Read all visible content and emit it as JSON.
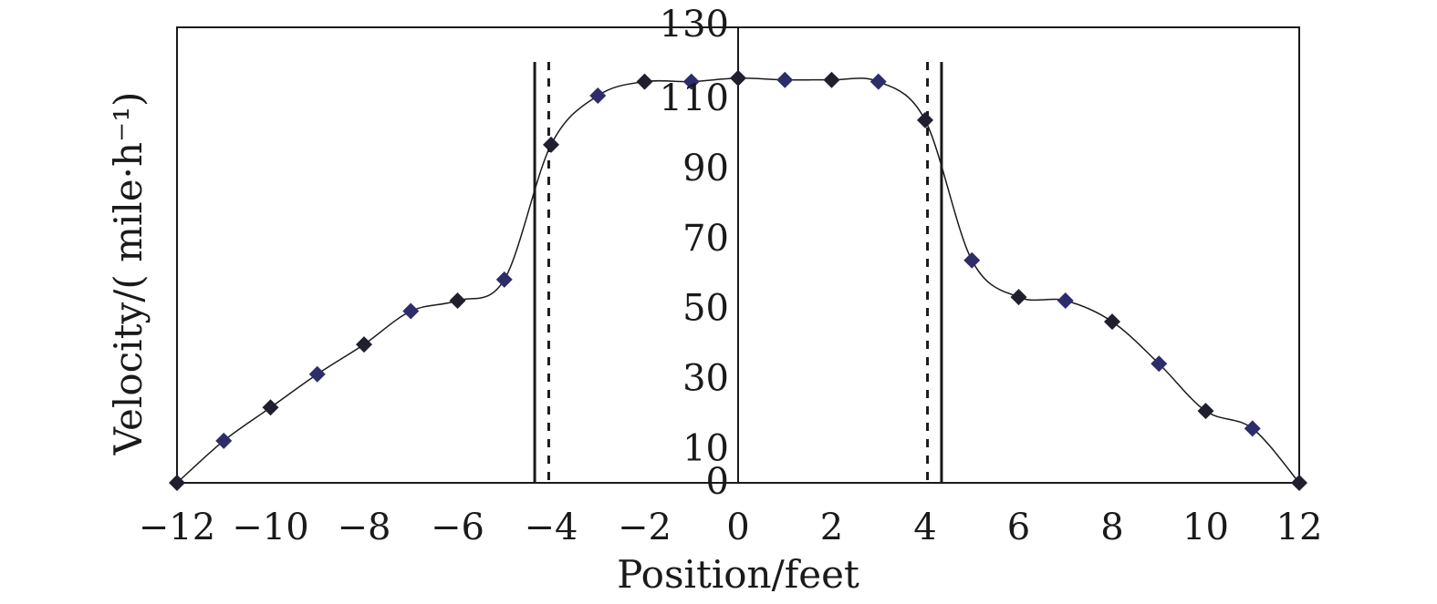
{
  "chart_data": {
    "type": "scatter",
    "title": "",
    "xlabel": "Position/feet",
    "ylabel": "Velocity/( mile·h⁻¹)",
    "xlim": [
      -12,
      12
    ],
    "ylim": [
      0,
      130
    ],
    "x_ticks": [
      -12,
      -10,
      -8,
      -6,
      -4,
      -2,
      0,
      2,
      4,
      6,
      8,
      10,
      12
    ],
    "x_tick_labels": [
      "−12",
      "−10",
      "−8",
      "−6",
      "−4",
      "−2",
      "0",
      "2",
      "4",
      "6",
      "8",
      "10",
      "12"
    ],
    "y_ticks": [
      0,
      10,
      30,
      50,
      70,
      90,
      110,
      130
    ],
    "y_tick_labels": [
      "0",
      "10",
      "30",
      "50",
      "70",
      "90",
      "110",
      "130"
    ],
    "grid": false,
    "legend": "none",
    "series": [
      {
        "x": [
          -12,
          -11,
          -10,
          -9,
          -8,
          -7,
          -6,
          -5,
          -4,
          -3,
          -2,
          -1,
          0,
          1,
          2,
          3,
          4,
          5,
          6,
          7,
          8,
          9,
          10,
          11,
          12
        ],
        "y": [
          0,
          12,
          21.5,
          31,
          39.5,
          49,
          52,
          58,
          96.5,
          110.5,
          114.5,
          114.5,
          115.5,
          115,
          115,
          114.5,
          103.5,
          63.5,
          53,
          52,
          46,
          34,
          20.5,
          15.5,
          0
        ]
      }
    ],
    "vertical_lines": [
      {
        "x": -4.35,
        "style": "solid"
      },
      {
        "x": -4.05,
        "style": "dashed"
      },
      {
        "x": 4.05,
        "style": "dashed"
      },
      {
        "x": 4.35,
        "style": "solid"
      }
    ],
    "colors": {
      "marker_light": "#2e2d6b",
      "marker_dark": "#1f1f2e",
      "line": "#1a1a1a",
      "axis": "#1a1a1a"
    }
  }
}
